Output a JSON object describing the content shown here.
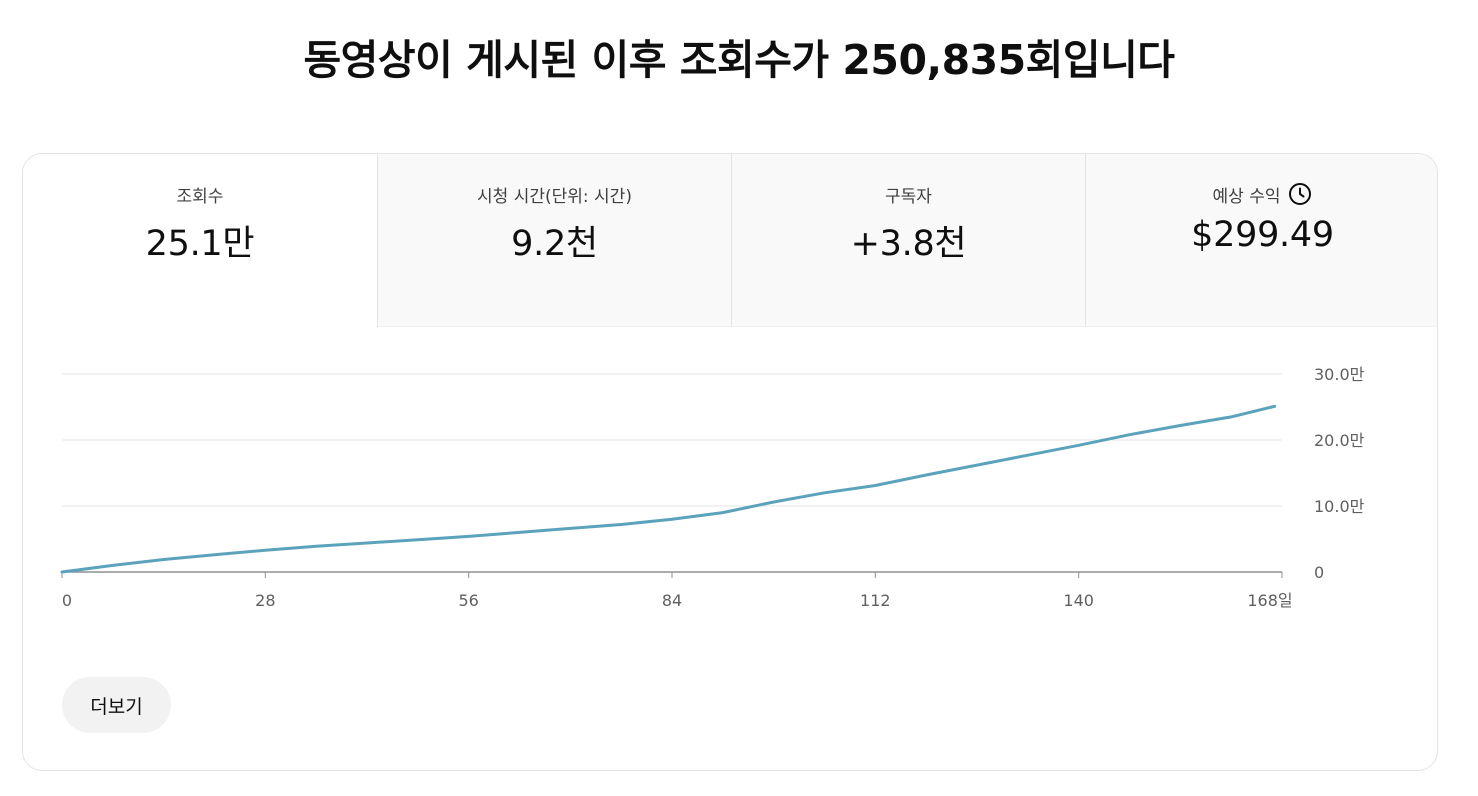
{
  "headline": "동영상이 게시된 이후 조회수가 250,835회입니다",
  "tabs": [
    {
      "label": "조회수",
      "value": "25.1만"
    },
    {
      "label": "시청 시간(단위: 시간)",
      "value": "9.2천"
    },
    {
      "label": "구독자",
      "value": "+3.8천"
    },
    {
      "label": "예상 수익",
      "value": "$299.49",
      "icon": "clock-icon"
    }
  ],
  "chart_data": {
    "type": "line",
    "xlabel": "",
    "ylabel": "",
    "x_ticks": [
      "0",
      "28",
      "56",
      "84",
      "112",
      "140",
      "168일"
    ],
    "x_tick_values": [
      0,
      28,
      56,
      84,
      112,
      140,
      168
    ],
    "y_ticks": [
      "0",
      "10.0만",
      "20.0만",
      "30.0만"
    ],
    "y_tick_values": [
      0,
      100000,
      200000,
      300000
    ],
    "xlim": [
      0,
      168
    ],
    "ylim": [
      0,
      300000
    ],
    "grid": true,
    "line_color": "#5ba3bd",
    "series": [
      {
        "x": [
          0,
          7,
          14,
          21,
          28,
          35,
          42,
          49,
          56,
          63,
          70,
          77,
          84,
          91,
          98,
          105,
          112,
          119,
          126,
          133,
          140,
          147,
          154,
          161,
          167
        ],
        "y": [
          0,
          10000,
          19000,
          26000,
          33000,
          39000,
          44000,
          49000,
          54000,
          60000,
          66000,
          72000,
          80000,
          90000,
          106000,
          120000,
          131000,
          147000,
          162000,
          177000,
          192000,
          208000,
          222000,
          235000,
          251000
        ]
      }
    ]
  },
  "more_button": {
    "label": "더보기"
  }
}
